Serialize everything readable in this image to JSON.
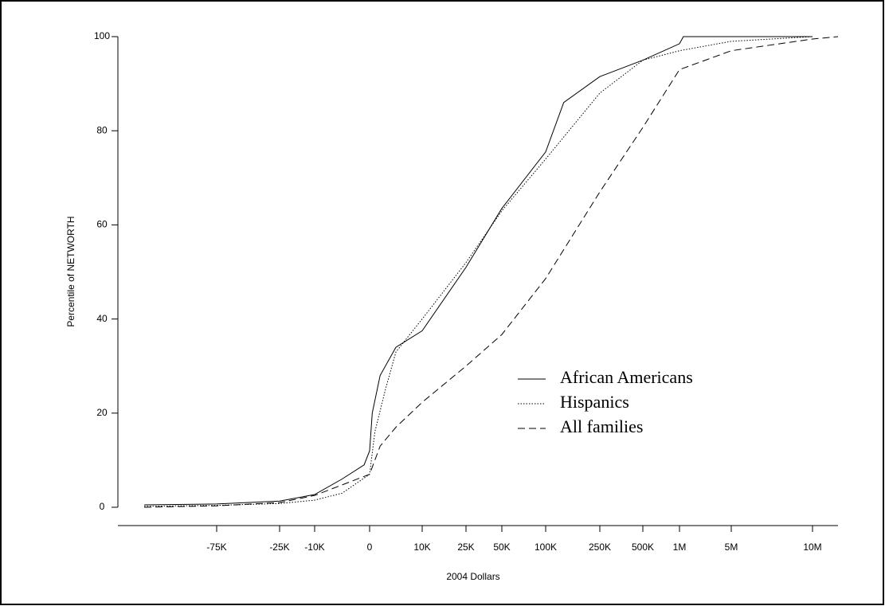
{
  "chart_data": {
    "type": "line",
    "xlabel": "2004 Dollars",
    "ylabel": "Percentile of NETWORTH",
    "xlim": [
      -150000,
      12000000
    ],
    "xticks": [
      {
        "value": -75000,
        "label": "-75K"
      },
      {
        "value": -25000,
        "label": "-25K"
      },
      {
        "value": -10000,
        "label": "-10K"
      },
      0,
      {
        "value": 10000,
        "label": "10K"
      },
      {
        "value": 25000,
        "label": "25K"
      },
      {
        "value": 50000,
        "label": "50K"
      },
      {
        "value": 100000,
        "label": "100K"
      },
      {
        "value": 250000,
        "label": "250K"
      },
      {
        "value": 500000,
        "label": "500K"
      },
      {
        "value": 1000000,
        "label": "1M"
      },
      {
        "value": 5000000,
        "label": "5M"
      },
      {
        "value": 10000000,
        "label": "10M"
      }
    ],
    "ylim": [
      0,
      100
    ],
    "yticks": [
      0,
      20,
      40,
      60,
      80,
      100
    ],
    "legend": "lower right",
    "series": [
      {
        "name": "African Americans",
        "color": "#000000",
        "linestyle": "solid",
        "x": [
          -130000,
          -75000,
          -25000,
          -10000,
          -5000,
          -1000,
          0,
          500,
          2000,
          5000,
          10000,
          25000,
          50000,
          100000,
          150000,
          250000,
          500000,
          1000000,
          1300000,
          10000000
        ],
        "values": [
          0.5,
          0.7,
          1.3,
          2.7,
          6,
          9,
          12,
          20,
          28,
          34,
          37.5,
          51,
          63.5,
          75.5,
          86,
          91.5,
          95,
          98.5,
          100,
          100
        ]
      },
      {
        "name": "Hispanics",
        "color": "#000000",
        "linestyle": "dotted",
        "x": [
          -130000,
          -75000,
          -25000,
          -10000,
          -5000,
          0,
          1000,
          3000,
          5000,
          10000,
          25000,
          50000,
          100000,
          250000,
          500000,
          1000000,
          5000000,
          10000000
        ],
        "values": [
          0.2,
          0.4,
          0.8,
          1.5,
          3,
          7,
          16,
          25,
          33,
          40,
          52,
          63,
          74,
          88,
          95,
          97,
          99,
          100
        ]
      },
      {
        "name": "All families",
        "color": "#000000",
        "linestyle": "dashed",
        "x": [
          -130000,
          -75000,
          -25000,
          -10000,
          0,
          2000,
          5000,
          10000,
          25000,
          50000,
          100000,
          250000,
          500000,
          1000000,
          5000000,
          10000000,
          12000000
        ],
        "values": [
          0,
          0.3,
          1,
          2.5,
          7,
          13,
          17,
          22.3,
          30,
          36.7,
          48.6,
          67,
          80.7,
          93,
          97,
          99.5,
          100
        ]
      }
    ]
  }
}
